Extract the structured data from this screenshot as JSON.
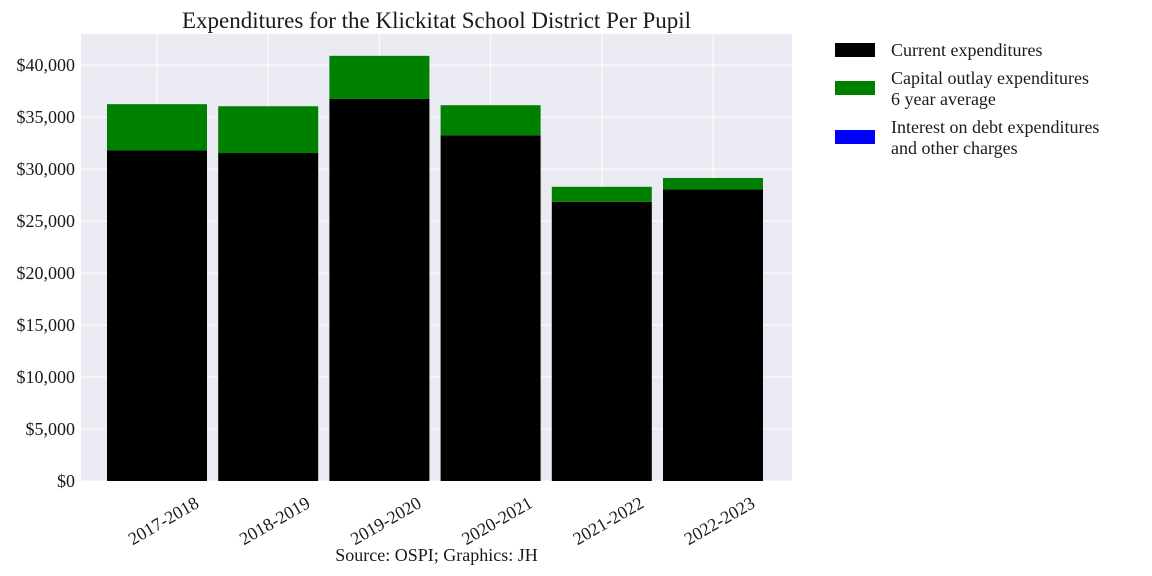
{
  "chart_data": {
    "type": "bar",
    "stacked": true,
    "title": "Expenditures for the Klickitat School District Per Pupil",
    "xlabel": "Source: OSPI; Graphics: JH",
    "ylabel": "",
    "ylim": [
      0,
      43000
    ],
    "yticks": [
      0,
      5000,
      10000,
      15000,
      20000,
      25000,
      30000,
      35000,
      40000
    ],
    "ytick_labels": [
      "$0",
      "$5,000",
      "$10,000",
      "$15,000",
      "$20,000",
      "$25,000",
      "$30,000",
      "$35,000",
      "$40,000"
    ],
    "grid": true,
    "legend_position": "outside-right",
    "categories": [
      "2017-2018",
      "2018-2019",
      "2019-2020",
      "2020-2021",
      "2021-2022",
      "2022-2023"
    ],
    "series": [
      {
        "name": "Current expenditures",
        "color": "#000000",
        "values": [
          31800,
          31550,
          36750,
          33250,
          26850,
          28050
        ]
      },
      {
        "name": "Capital outlay expenditures\n6 year average",
        "color": "#008000",
        "values": [
          4450,
          4500,
          4150,
          2900,
          1450,
          1100
        ]
      },
      {
        "name": "Interest on debt expenditures\nand other charges",
        "color": "#0000ff",
        "values": [
          0,
          0,
          0,
          0,
          0,
          0
        ]
      }
    ],
    "plot_background": "#eaeaf2",
    "grid_color": "#ffffff"
  }
}
